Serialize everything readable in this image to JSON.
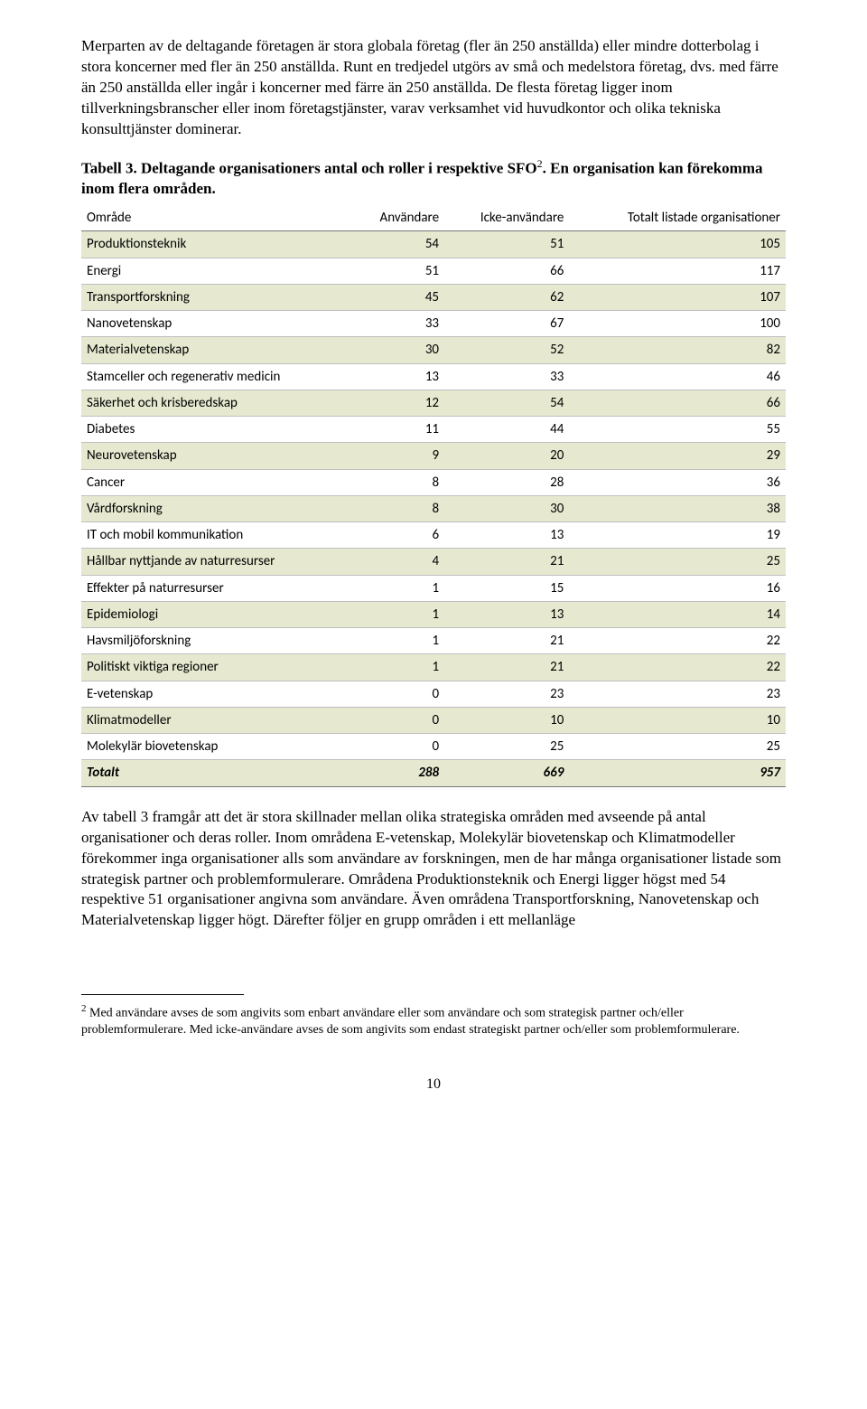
{
  "para1": "Merparten av de deltagande företagen är stora globala företag (fler än 250 anställda) eller mindre dotterbolag i stora koncerner med fler än 250 anställda. Runt en tredjedel utgörs av små och medelstora företag, dvs. med färre än 250 anställda eller ingår i koncerner med färre än 250 anställda. De flesta företag ligger inom tillverkningsbranscher eller inom företagstjänster, varav verksamhet vid huvudkontor och olika tekniska konsulttjänster dominerar.",
  "caption_bold": "Tabell 3. Deltagande organisationers antal och roller i respektive SFO",
  "caption_sup": "2",
  "caption_rest": ". En organisation kan förekomma inom flera områden.",
  "table": {
    "columns": [
      "Område",
      "Användare",
      "Icke-användare",
      "Totalt listade organisationer"
    ],
    "rows": [
      {
        "label": "Produktionsteknik",
        "a": 54,
        "b": 51,
        "c": 105,
        "alt": true
      },
      {
        "label": "Energi",
        "a": 51,
        "b": 66,
        "c": 117,
        "alt": false
      },
      {
        "label": "Transportforskning",
        "a": 45,
        "b": 62,
        "c": 107,
        "alt": true
      },
      {
        "label": "Nanovetenskap",
        "a": 33,
        "b": 67,
        "c": 100,
        "alt": false
      },
      {
        "label": "Materialvetenskap",
        "a": 30,
        "b": 52,
        "c": 82,
        "alt": true
      },
      {
        "label": "Stamceller och regenerativ medicin",
        "a": 13,
        "b": 33,
        "c": 46,
        "alt": false
      },
      {
        "label": "Säkerhet och krisberedskap",
        "a": 12,
        "b": 54,
        "c": 66,
        "alt": true
      },
      {
        "label": "Diabetes",
        "a": 11,
        "b": 44,
        "c": 55,
        "alt": false
      },
      {
        "label": "Neurovetenskap",
        "a": 9,
        "b": 20,
        "c": 29,
        "alt": true
      },
      {
        "label": "Cancer",
        "a": 8,
        "b": 28,
        "c": 36,
        "alt": false
      },
      {
        "label": "Vårdforskning",
        "a": 8,
        "b": 30,
        "c": 38,
        "alt": true
      },
      {
        "label": "IT och mobil kommunikation",
        "a": 6,
        "b": 13,
        "c": 19,
        "alt": false
      },
      {
        "label": "Hållbar nyttjande av naturresurser",
        "a": 4,
        "b": 21,
        "c": 25,
        "alt": true
      },
      {
        "label": "Effekter på naturresurser",
        "a": 1,
        "b": 15,
        "c": 16,
        "alt": false
      },
      {
        "label": "Epidemiologi",
        "a": 1,
        "b": 13,
        "c": 14,
        "alt": true
      },
      {
        "label": "Havsmiljöforskning",
        "a": 1,
        "b": 21,
        "c": 22,
        "alt": false
      },
      {
        "label": "Politiskt viktiga regioner",
        "a": 1,
        "b": 21,
        "c": 22,
        "alt": true
      },
      {
        "label": "E-vetenskap",
        "a": 0,
        "b": 23,
        "c": 23,
        "alt": false
      },
      {
        "label": "Klimatmodeller",
        "a": 0,
        "b": 10,
        "c": 10,
        "alt": true
      },
      {
        "label": "Molekylär biovetenskap",
        "a": 0,
        "b": 25,
        "c": 25,
        "alt": false
      }
    ],
    "total": {
      "label": "Totalt",
      "a": 288,
      "b": 669,
      "c": 957
    }
  },
  "para2": "Av tabell 3 framgår att det är stora skillnader mellan olika strategiska områden med avseende på antal organisationer och deras roller. Inom områdena E-vetenskap, Molekylär biovetenskap och Klimatmodeller förekommer inga organisationer alls som användare av forskningen, men de har många organisationer listade som strategisk partner och problemformulerare. Områdena Produktionsteknik och Energi ligger högst med 54 respektive 51 organisationer angivna som användare. Även områdena Transportforskning, Nanovetenskap och Materialvetenskap ligger högt. Därefter följer en grupp områden i ett mellanläge",
  "footnote_num": "2",
  "footnote_text": " Med användare avses de som angivits som enbart användare eller som användare och som strategisk partner och/eller problemformulerare. Med icke-användare avses de som angivits som endast strategiskt partner och/eller som problemformulerare.",
  "page_number": "10"
}
